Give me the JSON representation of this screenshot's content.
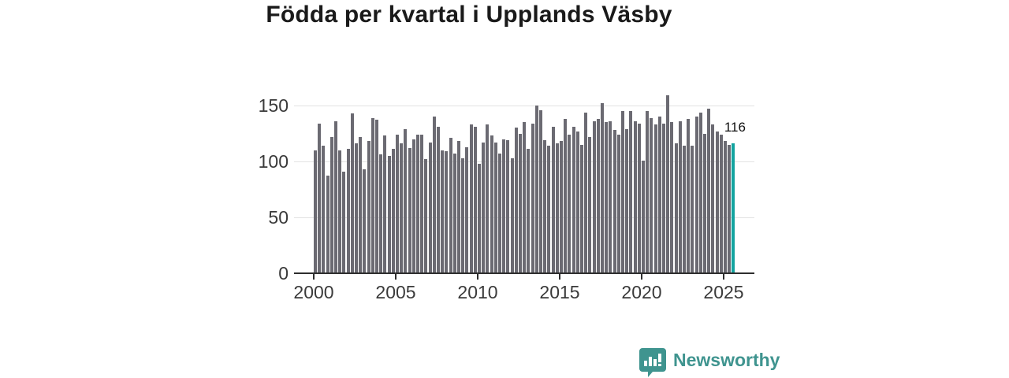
{
  "title": "Födda per kvartal i Upplands Väsby",
  "annotation": {
    "label": "116"
  },
  "branding": {
    "name": "Newsworthy"
  },
  "colors": {
    "bar": "#6b6a72",
    "accent": "#12a39f",
    "logo": "#3f948f",
    "grid": "#e3e3e3",
    "axis": "#2e2e2e",
    "title_text": "#1a1a1a",
    "tick_text": "#3a3a3a"
  },
  "chart_data": {
    "type": "bar",
    "title": "Födda per kvartal i Upplands Väsby",
    "xlabel": "",
    "ylabel": "",
    "x_freq": "quarterly",
    "x_start": "2000-Q1",
    "x_end": "2025-Q3",
    "x_tick_labels": [
      "2000",
      "2005",
      "2010",
      "2015",
      "2020",
      "2025"
    ],
    "y_ticks": [
      0,
      50,
      100,
      150
    ],
    "ylim": [
      0,
      165
    ],
    "grid": "horizontal",
    "legend": "none",
    "highlight_last": true,
    "highlight_value": 116,
    "values": [
      110,
      134,
      114,
      87,
      122,
      136,
      110,
      91,
      111,
      143,
      116,
      122,
      93,
      118,
      139,
      137,
      106,
      123,
      105,
      111,
      124,
      116,
      129,
      112,
      120,
      124,
      124,
      102,
      117,
      140,
      131,
      110,
      109,
      121,
      107,
      118,
      103,
      113,
      133,
      131,
      98,
      117,
      133,
      123,
      117,
      107,
      120,
      119,
      103,
      130,
      125,
      135,
      111,
      134,
      150,
      146,
      119,
      114,
      131,
      116,
      118,
      138,
      124,
      131,
      127,
      115,
      144,
      122,
      136,
      138,
      152,
      135,
      136,
      128,
      124,
      145,
      129,
      145,
      136,
      134,
      101,
      145,
      139,
      133,
      140,
      134,
      159,
      135,
      116,
      136,
      114,
      138,
      114,
      140,
      144,
      125,
      147,
      133,
      127,
      124,
      118,
      115,
      116
    ]
  }
}
